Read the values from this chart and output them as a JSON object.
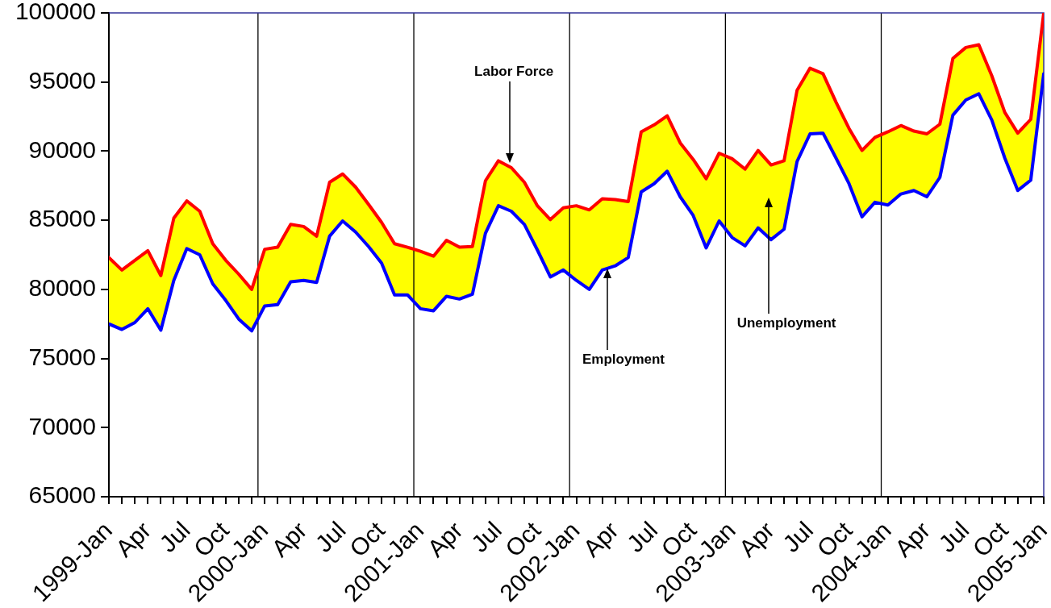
{
  "chart_data": {
    "type": "area",
    "x": [
      "1999-01",
      "1999-02",
      "1999-03",
      "1999-04",
      "1999-05",
      "1999-06",
      "1999-07",
      "1999-08",
      "1999-09",
      "1999-10",
      "1999-11",
      "1999-12",
      "2000-01",
      "2000-02",
      "2000-03",
      "2000-04",
      "2000-05",
      "2000-06",
      "2000-07",
      "2000-08",
      "2000-09",
      "2000-10",
      "2000-11",
      "2000-12",
      "2001-01",
      "2001-02",
      "2001-03",
      "2001-04",
      "2001-05",
      "2001-06",
      "2001-07",
      "2001-08",
      "2001-09",
      "2001-10",
      "2001-11",
      "2001-12",
      "2002-01",
      "2002-02",
      "2002-03",
      "2002-04",
      "2002-05",
      "2002-06",
      "2002-07",
      "2002-08",
      "2002-09",
      "2002-10",
      "2002-11",
      "2002-12",
      "2003-01",
      "2003-02",
      "2003-03",
      "2003-04",
      "2003-05",
      "2003-06",
      "2003-07",
      "2003-08",
      "2003-09",
      "2003-10",
      "2003-11",
      "2003-12",
      "2004-01",
      "2004-02",
      "2004-03",
      "2004-04",
      "2004-05",
      "2004-06",
      "2004-07",
      "2004-08",
      "2004-09",
      "2004-10",
      "2004-11",
      "2004-12",
      "2005-01"
    ],
    "xlim": [
      "1999-01",
      "2005-01"
    ],
    "xticks": [
      {
        "value": "1999-01",
        "label": "1999-Jan"
      },
      {
        "value": "1999-02",
        "label": null
      },
      {
        "value": "1999-03",
        "label": null
      },
      {
        "value": "1999-04",
        "label": "Apr"
      },
      {
        "value": "1999-05",
        "label": null
      },
      {
        "value": "1999-06",
        "label": null
      },
      {
        "value": "1999-07",
        "label": "Jul"
      },
      {
        "value": "1999-08",
        "label": null
      },
      {
        "value": "1999-09",
        "label": null
      },
      {
        "value": "1999-10",
        "label": "Oct"
      },
      {
        "value": "1999-11",
        "label": null
      },
      {
        "value": "1999-12",
        "label": null
      },
      {
        "value": "2000-01",
        "label": "2000-Jan"
      },
      {
        "value": "2000-02",
        "label": null
      },
      {
        "value": "2000-03",
        "label": null
      },
      {
        "value": "2000-04",
        "label": "Apr"
      },
      {
        "value": "2000-05",
        "label": null
      },
      {
        "value": "2000-06",
        "label": null
      },
      {
        "value": "2000-07",
        "label": "Jul"
      },
      {
        "value": "2000-08",
        "label": null
      },
      {
        "value": "2000-09",
        "label": null
      },
      {
        "value": "2000-10",
        "label": "Oct"
      },
      {
        "value": "2000-11",
        "label": null
      },
      {
        "value": "2000-12",
        "label": null
      },
      {
        "value": "2001-01",
        "label": "2001-Jan"
      },
      {
        "value": "2001-02",
        "label": null
      },
      {
        "value": "2001-03",
        "label": null
      },
      {
        "value": "2001-04",
        "label": "Apr"
      },
      {
        "value": "2001-05",
        "label": null
      },
      {
        "value": "2001-06",
        "label": null
      },
      {
        "value": "2001-07",
        "label": "Jul"
      },
      {
        "value": "2001-08",
        "label": null
      },
      {
        "value": "2001-09",
        "label": null
      },
      {
        "value": "2001-10",
        "label": "Oct"
      },
      {
        "value": "2001-11",
        "label": null
      },
      {
        "value": "2001-12",
        "label": null
      },
      {
        "value": "2002-01",
        "label": "2002-Jan"
      },
      {
        "value": "2002-02",
        "label": null
      },
      {
        "value": "2002-03",
        "label": null
      },
      {
        "value": "2002-04",
        "label": "Apr"
      },
      {
        "value": "2002-05",
        "label": null
      },
      {
        "value": "2002-06",
        "label": null
      },
      {
        "value": "2002-07",
        "label": "Jul"
      },
      {
        "value": "2002-08",
        "label": null
      },
      {
        "value": "2002-09",
        "label": null
      },
      {
        "value": "2002-10",
        "label": "Oct"
      },
      {
        "value": "2002-11",
        "label": null
      },
      {
        "value": "2002-12",
        "label": null
      },
      {
        "value": "2003-01",
        "label": "2003-Jan"
      },
      {
        "value": "2003-02",
        "label": null
      },
      {
        "value": "2003-03",
        "label": null
      },
      {
        "value": "2003-04",
        "label": "Apr"
      },
      {
        "value": "2003-05",
        "label": null
      },
      {
        "value": "2003-06",
        "label": null
      },
      {
        "value": "2003-07",
        "label": "Jul"
      },
      {
        "value": "2003-08",
        "label": null
      },
      {
        "value": "2003-09",
        "label": null
      },
      {
        "value": "2003-10",
        "label": "Oct"
      },
      {
        "value": "2003-11",
        "label": null
      },
      {
        "value": "2003-12",
        "label": null
      },
      {
        "value": "2004-01",
        "label": "2004-Jan"
      },
      {
        "value": "2004-02",
        "label": null
      },
      {
        "value": "2004-03",
        "label": null
      },
      {
        "value": "2004-04",
        "label": "Apr"
      },
      {
        "value": "2004-05",
        "label": null
      },
      {
        "value": "2004-06",
        "label": null
      },
      {
        "value": "2004-07",
        "label": "Jul"
      },
      {
        "value": "2004-08",
        "label": null
      },
      {
        "value": "2004-09",
        "label": null
      },
      {
        "value": "2004-10",
        "label": "Oct"
      },
      {
        "value": "2004-11",
        "label": null
      },
      {
        "value": "2004-12",
        "label": null
      },
      {
        "value": "2005-01",
        "label": "2005-Jan"
      }
    ],
    "ylim": [
      65000,
      100000
    ],
    "yticks": [
      65000,
      70000,
      75000,
      80000,
      85000,
      90000,
      95000,
      100000
    ],
    "series": [
      {
        "type": "line",
        "color": "#0000ff",
        "values": [
          77500,
          77100,
          77600,
          78600,
          77050,
          80650,
          82950,
          82500,
          80400,
          79200,
          77850,
          77000,
          78800,
          78900,
          80550,
          80650,
          80500,
          83850,
          84950,
          84150,
          83100,
          81900,
          79600,
          79600,
          78600,
          78450,
          79500,
          79300,
          79650,
          84050,
          86050,
          85650,
          84700,
          82850,
          80900,
          81400,
          80650,
          80000,
          81400,
          81700,
          82300,
          87050,
          87650,
          88550,
          86700,
          85350,
          83000,
          84950,
          83750,
          83150,
          84450,
          83600,
          84350,
          89250,
          91250,
          91300,
          89500,
          87650,
          85250,
          86300,
          86100,
          86900,
          87150,
          86700,
          88100,
          92600,
          93700,
          94150,
          92250,
          89500,
          87150,
          87900,
          95600
        ]
      },
      {
        "color": "#ffff00",
        "values": [
          82300,
          81400,
          82100,
          82800,
          81000,
          85150,
          86400,
          85650,
          83300,
          82100,
          81100,
          80000,
          82900,
          83050,
          84700,
          84550,
          83850,
          87750,
          88350,
          87400,
          86150,
          84850,
          83300,
          83050,
          82750,
          82400,
          83550,
          83050,
          83100,
          87850,
          89300,
          88800,
          87750,
          86050,
          85050,
          85900,
          86050,
          85750,
          86550,
          86500,
          86350,
          91400,
          91900,
          92550,
          90600,
          89400,
          88000,
          89850,
          89450,
          88700,
          90050,
          89000,
          89300,
          94400,
          96000,
          95600,
          93550,
          91650,
          90050,
          91000,
          91400,
          91850,
          91450,
          91250,
          91950,
          96700,
          97500,
          97700,
          95450,
          92800,
          91300,
          92300,
          100000
        ]
      }
    ],
    "ref_lines": [
      {
        "axis": "x",
        "value": "1999-12-16",
        "color": "#000000"
      },
      {
        "axis": "x",
        "value": "2000-12-16",
        "color": "#000000"
      },
      {
        "axis": "x",
        "value": "2001-12-16",
        "color": "#000000"
      },
      {
        "axis": "x",
        "value": "2002-12-16",
        "color": "#000000"
      },
      {
        "axis": "x",
        "value": "2003-12-16",
        "color": "#000000"
      }
    ],
    "annotations": [
      "Labor Force",
      "Employment",
      "Unemployment"
    ]
  }
}
